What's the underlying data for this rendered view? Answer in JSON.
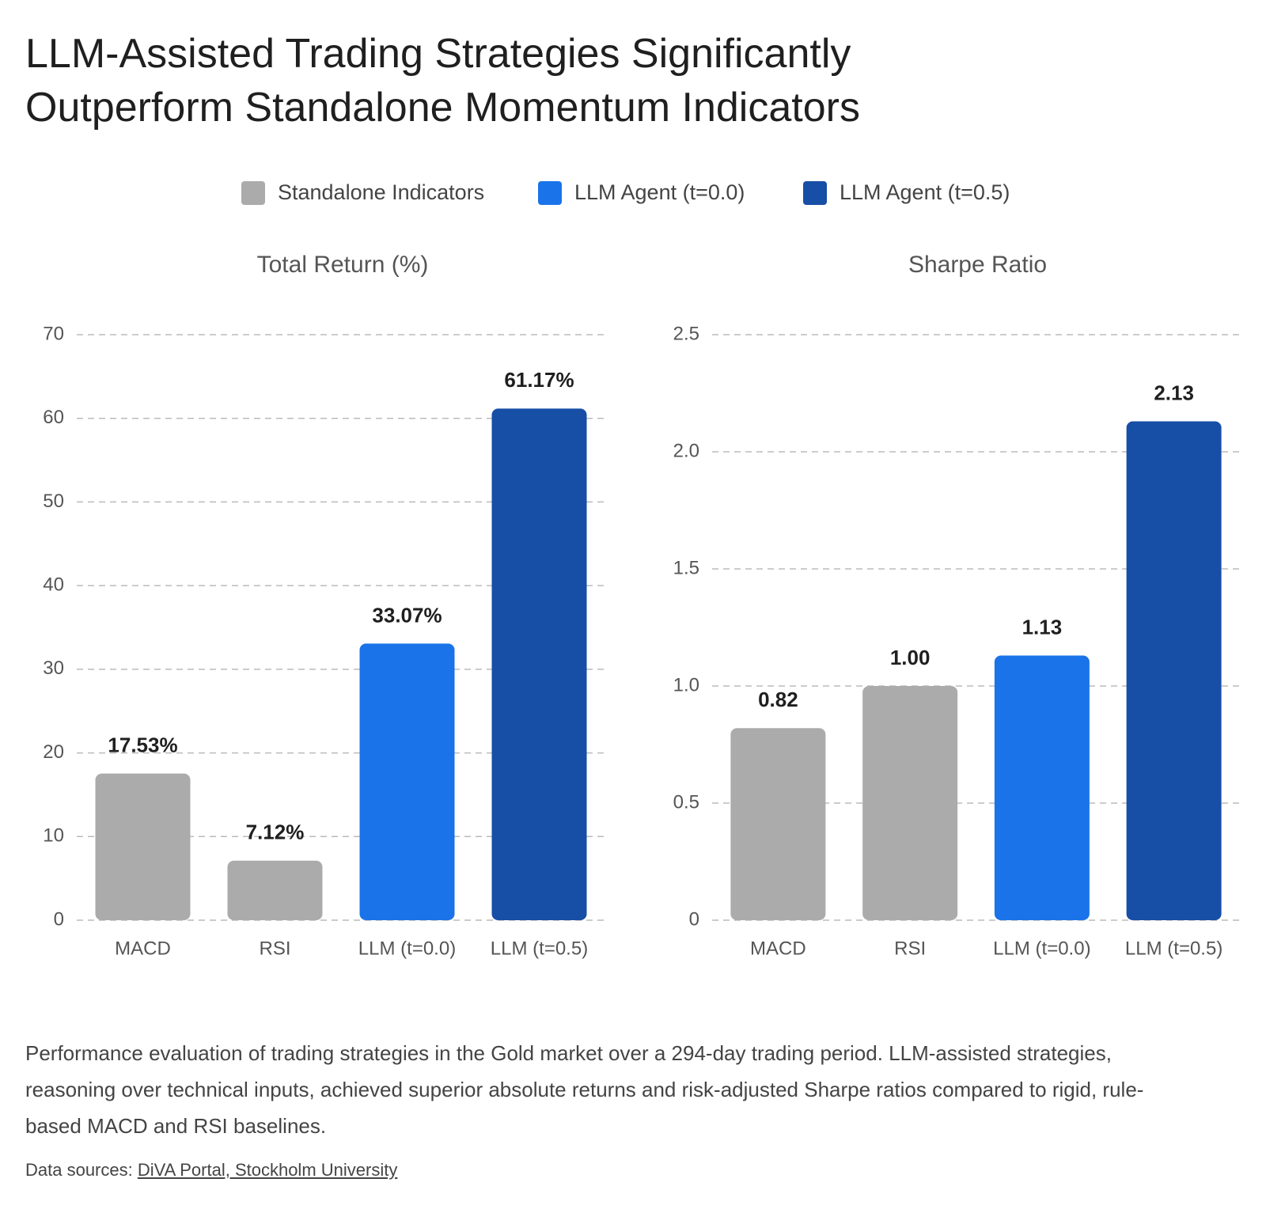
{
  "title": "LLM-Assisted Trading Strategies Significantly Outperform Standalone Momentum Indicators",
  "legend": [
    {
      "name": "Standalone Indicators",
      "color": "#ababab"
    },
    {
      "name": "LLM Agent (t=0.0)",
      "color": "#1a73e8"
    },
    {
      "name": "LLM Agent (t=0.5)",
      "color": "#174ea6"
    }
  ],
  "chart_data": [
    {
      "type": "bar",
      "title": "Total Return (%)",
      "categories": [
        "MACD",
        "RSI",
        "LLM (t=0.0)",
        "LLM (t=0.5)"
      ],
      "values": [
        17.53,
        7.12,
        33.07,
        61.17
      ],
      "value_labels": [
        "17.53%",
        "7.12%",
        "33.07%",
        "61.17%"
      ],
      "colors": [
        "#ababab",
        "#ababab",
        "#1a73e8",
        "#174ea6"
      ],
      "ylim": [
        0,
        70
      ],
      "yticks": [
        0,
        10,
        20,
        30,
        40,
        50,
        60,
        70
      ],
      "grid": true
    },
    {
      "type": "bar",
      "title": "Sharpe Ratio",
      "categories": [
        "MACD",
        "RSI",
        "LLM (t=0.0)",
        "LLM (t=0.5)"
      ],
      "values": [
        0.82,
        1,
        1.13,
        2.13
      ],
      "value_labels": [
        "0.82",
        "1.00",
        "1.13",
        "2.13"
      ],
      "colors": [
        "#ababab",
        "#ababab",
        "#1a73e8",
        "#174ea6"
      ],
      "ylim": [
        0,
        2.5
      ],
      "yticks": [
        0,
        0.5,
        {
          "value": 1,
          "label": "1.0"
        },
        1.5,
        {
          "value": 2,
          "label": "2.0"
        },
        2.5
      ],
      "grid": true
    }
  ],
  "caption": "Performance evaluation of trading strategies in the Gold market over a 294-day trading period. LLM-assisted strategies, reasoning over technical inputs, achieved superior absolute returns and risk-adjusted Sharpe ratios compared to rigid, rule-based MACD and RSI baselines.",
  "source": {
    "prefix": "Data sources:",
    "link": "DiVA Portal, Stockholm University"
  }
}
